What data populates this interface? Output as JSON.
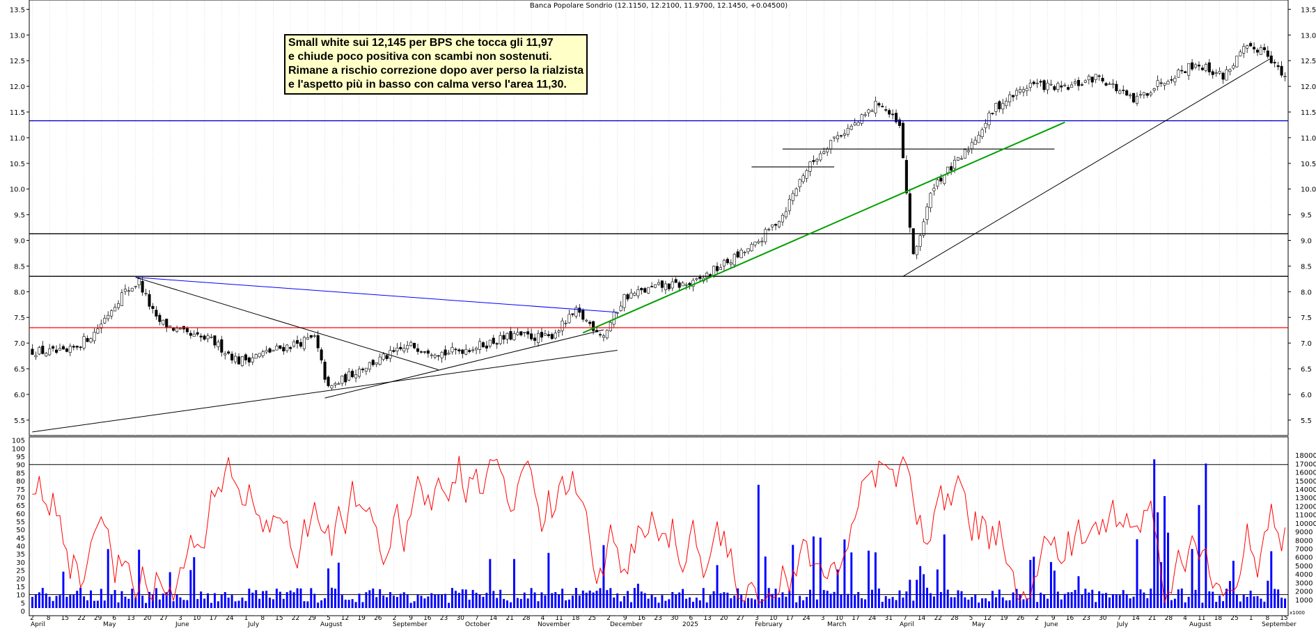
{
  "chart_data": {
    "type": "candlestick",
    "title": "Banca Popolare Sondrio (12.1150, 12.2100, 11.9700, 12.1450, +0.04500)",
    "note": [
      "Small white sui 12,145 per BPS che tocca gli 11,97",
      "e chiude poco positiva con scambi non sostenuti.",
      "Rimane a rischio correzione dopo aver perso la rialzista",
      "e l'aspetto più in basso con calma verso l'area 11,30."
    ],
    "price_axis": {
      "ticks": [
        "5.5",
        "6.0",
        "6.5",
        "7.0",
        "7.5",
        "8.0",
        "8.5",
        "9.0",
        "9.5",
        "10.0",
        "10.5",
        "11.0",
        "11.5",
        "12.0",
        "12.5",
        "13.0",
        "13.5"
      ],
      "range": [
        5.2,
        13.6
      ]
    },
    "oscillator_axis": {
      "ticks": [
        "0",
        "5",
        "10",
        "15",
        "20",
        "25",
        "30",
        "35",
        "40",
        "45",
        "50",
        "55",
        "60",
        "65",
        "70",
        "75",
        "80",
        "85",
        "90",
        "95",
        "100",
        "105"
      ],
      "range": [
        -3,
        107
      ]
    },
    "volume_axis": {
      "ticks": [
        "1000",
        "2000",
        "3000",
        "4000",
        "5000",
        "6000",
        "7000",
        "8000",
        "9000",
        "10000",
        "11000",
        "12000",
        "13000",
        "14000",
        "15000",
        "16000",
        "17000",
        "18000"
      ],
      "unit_label": "x1000",
      "range": [
        0,
        18500
      ]
    },
    "x_axis": {
      "day_labels": [
        "2",
        "8",
        "15",
        "22",
        "29",
        "6",
        "13",
        "20",
        "27",
        "3",
        "10",
        "17",
        "24",
        "1",
        "8",
        "15",
        "22",
        "29",
        "5",
        "12",
        "19",
        "26",
        "2",
        "9",
        "16",
        "23",
        "30",
        "7",
        "14",
        "21",
        "28",
        "4",
        "11",
        "18",
        "25",
        "2",
        "9",
        "16",
        "23",
        "30",
        "6",
        "13",
        "20",
        "27",
        "3",
        "10",
        "17",
        "24",
        "3",
        "10",
        "17",
        "24",
        "31",
        "7",
        "14",
        "22",
        "28",
        "5",
        "12",
        "19",
        "26",
        "2",
        "9",
        "16",
        "23",
        "30",
        "7",
        "14",
        "21",
        "28",
        "4",
        "11",
        "18",
        "25",
        "1",
        "8",
        "15"
      ],
      "month_labels": [
        "April",
        "May",
        "June",
        "July",
        "August",
        "September",
        "October",
        "November",
        "December",
        "2025",
        "February",
        "March",
        "April",
        "May",
        "June",
        "July",
        "August",
        "September"
      ]
    },
    "horizontal_levels": [
      {
        "value": 7.3,
        "color": "#ff0000"
      },
      {
        "value": 8.3,
        "color": "#000000"
      },
      {
        "value": 9.13,
        "color": "#000000"
      },
      {
        "value": 11.33,
        "color": "#0000cc"
      }
    ],
    "short_levels": [
      {
        "value": 10.78,
        "from_day": 218,
        "to_day": 297
      },
      {
        "value": 10.43,
        "from_day": 209,
        "to_day": 233
      }
    ],
    "trendlines": [
      {
        "from": [
          0,
          5.27
        ],
        "to": [
          170,
          6.86
        ],
        "color": "#000000"
      },
      {
        "from": [
          30,
          8.28
        ],
        "to": [
          170,
          7.6
        ],
        "color": "#0000ff"
      },
      {
        "from": [
          30,
          8.28
        ],
        "to": [
          118,
          6.48
        ],
        "color": "#000000"
      },
      {
        "from": [
          85,
          5.93
        ],
        "to": [
          166,
          7.26
        ],
        "color": "#000000"
      },
      {
        "from": [
          160,
          7.2
        ],
        "to": [
          300,
          11.3
        ],
        "color": "#00a000"
      },
      {
        "from": [
          253,
          8.3
        ],
        "to": [
          360,
          12.55
        ],
        "color": "#000000"
      }
    ],
    "oscillator_levels": [
      10,
      90
    ],
    "series_colors": {
      "oscillator": "#ff0000",
      "volume": "#0000ff",
      "candles": "#000000"
    }
  }
}
